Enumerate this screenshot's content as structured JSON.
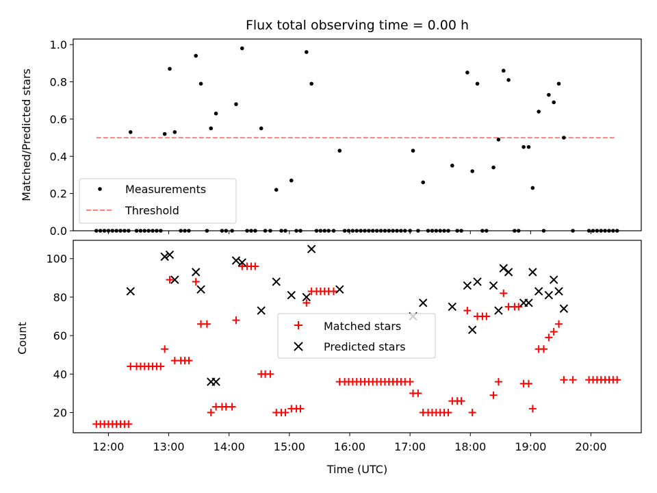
{
  "title": "Flux total observing time = 0.00 h",
  "colors": {
    "measurement": "#000000",
    "threshold": "#ff7f7f",
    "matched": "#ff0000",
    "predicted": "#000000"
  },
  "chart_data": [
    {
      "type": "scatter",
      "ylabel": "Matched/Predicted stars",
      "xlabel": "",
      "xlim": [
        "11:25",
        "20:50"
      ],
      "ylim": [
        0,
        1.03
      ],
      "yticks": [
        "0.0",
        "0.2",
        "0.4",
        "0.6",
        "0.8",
        "1.0"
      ],
      "legend": {
        "placement": "lower-left",
        "entries": [
          "Measurements",
          "Threshold"
        ]
      },
      "threshold": {
        "name": "Threshold",
        "y": 0.5,
        "x_range": [
          "11:48",
          "20:25"
        ]
      },
      "series": [
        {
          "name": "Measurements",
          "points": [
            [
              "11:48",
              0
            ],
            [
              "11:52",
              0
            ],
            [
              "11:56",
              0
            ],
            [
              "12:00",
              0
            ],
            [
              "12:04",
              0
            ],
            [
              "12:08",
              0
            ],
            [
              "12:12",
              0
            ],
            [
              "12:16",
              0
            ],
            [
              "12:20",
              0
            ],
            [
              "12:22",
              0.53
            ],
            [
              "12:28",
              0
            ],
            [
              "12:32",
              0
            ],
            [
              "12:36",
              0
            ],
            [
              "12:40",
              0
            ],
            [
              "12:44",
              0
            ],
            [
              "12:48",
              0
            ],
            [
              "12:52",
              0
            ],
            [
              "12:56",
              0.52
            ],
            [
              "13:01",
              0.87
            ],
            [
              "13:06",
              0.53
            ],
            [
              "13:12",
              0
            ],
            [
              "13:16",
              0
            ],
            [
              "13:20",
              0
            ],
            [
              "13:27",
              0.94
            ],
            [
              "13:32",
              0.79
            ],
            [
              "13:38",
              0
            ],
            [
              "13:42",
              0.55
            ],
            [
              "13:47",
              0.63
            ],
            [
              "13:53",
              0
            ],
            [
              "13:57",
              0
            ],
            [
              "14:03",
              0
            ],
            [
              "14:07",
              0.68
            ],
            [
              "14:13",
              0.98
            ],
            [
              "14:18",
              0
            ],
            [
              "14:22",
              0
            ],
            [
              "14:26",
              0
            ],
            [
              "14:32",
              0.55
            ],
            [
              "14:36",
              0
            ],
            [
              "14:41",
              0
            ],
            [
              "14:47",
              0.22
            ],
            [
              "14:52",
              0
            ],
            [
              "14:56",
              0
            ],
            [
              "15:02",
              0.27
            ],
            [
              "15:07",
              0
            ],
            [
              "15:11",
              0
            ],
            [
              "15:17",
              0.96
            ],
            [
              "15:22",
              0.79
            ],
            [
              "15:27",
              0
            ],
            [
              "15:31",
              0
            ],
            [
              "15:35",
              0
            ],
            [
              "15:39",
              0
            ],
            [
              "15:44",
              0
            ],
            [
              "15:50",
              0.43
            ],
            [
              "15:55",
              0
            ],
            [
              "15:59",
              0
            ],
            [
              "16:03",
              0
            ],
            [
              "16:07",
              0
            ],
            [
              "16:11",
              0
            ],
            [
              "16:15",
              0
            ],
            [
              "16:19",
              0
            ],
            [
              "16:23",
              0
            ],
            [
              "16:27",
              0
            ],
            [
              "16:31",
              0
            ],
            [
              "16:35",
              0
            ],
            [
              "16:39",
              0
            ],
            [
              "16:43",
              0
            ],
            [
              "16:47",
              0
            ],
            [
              "16:51",
              0
            ],
            [
              "16:55",
              0
            ],
            [
              "17:00",
              0
            ],
            [
              "17:03",
              0.43
            ],
            [
              "17:08",
              0
            ],
            [
              "17:13",
              0.26
            ],
            [
              "17:18",
              0
            ],
            [
              "17:22",
              0
            ],
            [
              "17:26",
              0
            ],
            [
              "17:30",
              0
            ],
            [
              "17:34",
              0
            ],
            [
              "17:38",
              0
            ],
            [
              "17:42",
              0.35
            ],
            [
              "17:47",
              0
            ],
            [
              "17:51",
              0
            ],
            [
              "17:57",
              0.85
            ],
            [
              "18:02",
              0.32
            ],
            [
              "18:07",
              0.79
            ],
            [
              "18:12",
              0
            ],
            [
              "18:16",
              0
            ],
            [
              "18:23",
              0.34
            ],
            [
              "18:28",
              0.49
            ],
            [
              "18:33",
              0.86
            ],
            [
              "18:38",
              0.81
            ],
            [
              "18:44",
              0
            ],
            [
              "18:48",
              0
            ],
            [
              "18:53",
              0.45
            ],
            [
              "18:58",
              0.45
            ],
            [
              "19:02",
              0.23
            ],
            [
              "19:08",
              0.64
            ],
            [
              "19:13",
              0
            ],
            [
              "19:18",
              0.73
            ],
            [
              "19:23",
              0.69
            ],
            [
              "19:28",
              0.79
            ],
            [
              "19:33",
              0.5
            ],
            [
              "19:42",
              0
            ],
            [
              "19:58",
              0
            ],
            [
              "20:02",
              0
            ],
            [
              "20:06",
              0
            ],
            [
              "20:10",
              0
            ],
            [
              "20:14",
              0
            ],
            [
              "20:18",
              0
            ],
            [
              "20:22",
              0
            ],
            [
              "20:26",
              0
            ]
          ]
        }
      ]
    },
    {
      "type": "scatter",
      "xlabel": "Time (UTC)",
      "ylabel": "Count",
      "xlim": [
        "11:25",
        "20:50"
      ],
      "ylim": [
        9.5,
        109.5
      ],
      "xticks": [
        "12:00",
        "13:00",
        "14:00",
        "15:00",
        "16:00",
        "17:00",
        "18:00",
        "19:00",
        "20:00"
      ],
      "yticks": [
        "20",
        "40",
        "60",
        "80",
        "100"
      ],
      "legend": {
        "placement": "center",
        "entries": [
          "Matched stars",
          "Predicted stars"
        ]
      },
      "series": [
        {
          "name": "Matched stars",
          "points": [
            [
              "11:48",
              14
            ],
            [
              "11:52",
              14
            ],
            [
              "11:56",
              14
            ],
            [
              "12:00",
              14
            ],
            [
              "12:04",
              14
            ],
            [
              "12:08",
              14
            ],
            [
              "12:12",
              14
            ],
            [
              "12:16",
              14
            ],
            [
              "12:20",
              14
            ],
            [
              "12:22",
              44
            ],
            [
              "12:28",
              44
            ],
            [
              "12:32",
              44
            ],
            [
              "12:36",
              44
            ],
            [
              "12:40",
              44
            ],
            [
              "12:44",
              44
            ],
            [
              "12:48",
              44
            ],
            [
              "12:52",
              44
            ],
            [
              "12:56",
              53
            ],
            [
              "13:01",
              89
            ],
            [
              "13:06",
              47
            ],
            [
              "13:12",
              47
            ],
            [
              "13:16",
              47
            ],
            [
              "13:20",
              47
            ],
            [
              "13:27",
              88
            ],
            [
              "13:32",
              66
            ],
            [
              "13:38",
              66
            ],
            [
              "13:42",
              20
            ],
            [
              "13:47",
              23
            ],
            [
              "13:53",
              23
            ],
            [
              "13:57",
              23
            ],
            [
              "14:03",
              23
            ],
            [
              "14:07",
              68
            ],
            [
              "14:13",
              96
            ],
            [
              "14:18",
              96
            ],
            [
              "14:22",
              96
            ],
            [
              "14:26",
              96
            ],
            [
              "14:32",
              40
            ],
            [
              "14:36",
              40
            ],
            [
              "14:41",
              40
            ],
            [
              "14:47",
              20
            ],
            [
              "14:52",
              20
            ],
            [
              "14:56",
              20
            ],
            [
              "15:02",
              22
            ],
            [
              "15:07",
              22
            ],
            [
              "15:11",
              22
            ],
            [
              "15:17",
              77
            ],
            [
              "15:22",
              83
            ],
            [
              "15:27",
              83
            ],
            [
              "15:31",
              83
            ],
            [
              "15:35",
              83
            ],
            [
              "15:39",
              83
            ],
            [
              "15:44",
              83
            ],
            [
              "15:50",
              36
            ],
            [
              "15:55",
              36
            ],
            [
              "15:59",
              36
            ],
            [
              "16:03",
              36
            ],
            [
              "16:07",
              36
            ],
            [
              "16:11",
              36
            ],
            [
              "16:15",
              36
            ],
            [
              "16:19",
              36
            ],
            [
              "16:23",
              36
            ],
            [
              "16:27",
              36
            ],
            [
              "16:31",
              36
            ],
            [
              "16:35",
              36
            ],
            [
              "16:39",
              36
            ],
            [
              "16:43",
              36
            ],
            [
              "16:47",
              36
            ],
            [
              "16:51",
              36
            ],
            [
              "16:55",
              36
            ],
            [
              "17:00",
              36
            ],
            [
              "17:03",
              30
            ],
            [
              "17:08",
              30
            ],
            [
              "17:13",
              20
            ],
            [
              "17:18",
              20
            ],
            [
              "17:22",
              20
            ],
            [
              "17:26",
              20
            ],
            [
              "17:30",
              20
            ],
            [
              "17:34",
              20
            ],
            [
              "17:38",
              20
            ],
            [
              "17:42",
              26
            ],
            [
              "17:47",
              26
            ],
            [
              "17:51",
              26
            ],
            [
              "17:57",
              73
            ],
            [
              "18:02",
              20
            ],
            [
              "18:07",
              70
            ],
            [
              "18:12",
              70
            ],
            [
              "18:16",
              70
            ],
            [
              "18:23",
              29
            ],
            [
              "18:28",
              36
            ],
            [
              "18:33",
              82
            ],
            [
              "18:38",
              75
            ],
            [
              "18:44",
              75
            ],
            [
              "18:48",
              75
            ],
            [
              "18:53",
              35
            ],
            [
              "18:58",
              35
            ],
            [
              "19:02",
              22
            ],
            [
              "19:08",
              53
            ],
            [
              "19:13",
              53
            ],
            [
              "19:18",
              59
            ],
            [
              "19:23",
              62
            ],
            [
              "19:28",
              66
            ],
            [
              "19:33",
              37
            ],
            [
              "19:42",
              37
            ],
            [
              "19:58",
              37
            ],
            [
              "20:02",
              37
            ],
            [
              "20:06",
              37
            ],
            [
              "20:10",
              37
            ],
            [
              "20:14",
              37
            ],
            [
              "20:18",
              37
            ],
            [
              "20:22",
              37
            ],
            [
              "20:26",
              37
            ]
          ]
        },
        {
          "name": "Predicted stars",
          "points": [
            [
              "12:22",
              83
            ],
            [
              "12:56",
              101
            ],
            [
              "13:01",
              102
            ],
            [
              "13:06",
              89
            ],
            [
              "13:27",
              93
            ],
            [
              "13:32",
              84
            ],
            [
              "13:42",
              36
            ],
            [
              "13:47",
              36
            ],
            [
              "14:07",
              99
            ],
            [
              "14:13",
              98
            ],
            [
              "14:32",
              73
            ],
            [
              "14:47",
              88
            ],
            [
              "15:02",
              81
            ],
            [
              "15:17",
              80
            ],
            [
              "15:22",
              105
            ],
            [
              "15:50",
              84
            ],
            [
              "17:03",
              70
            ],
            [
              "17:13",
              77
            ],
            [
              "17:42",
              75
            ],
            [
              "17:57",
              86
            ],
            [
              "18:02",
              63
            ],
            [
              "18:07",
              88
            ],
            [
              "18:23",
              86
            ],
            [
              "18:28",
              73
            ],
            [
              "18:33",
              95
            ],
            [
              "18:38",
              93
            ],
            [
              "18:53",
              77
            ],
            [
              "18:58",
              77
            ],
            [
              "19:02",
              93
            ],
            [
              "19:08",
              83
            ],
            [
              "19:18",
              81
            ],
            [
              "19:23",
              89
            ],
            [
              "19:28",
              83
            ],
            [
              "19:33",
              74
            ]
          ]
        }
      ]
    }
  ]
}
